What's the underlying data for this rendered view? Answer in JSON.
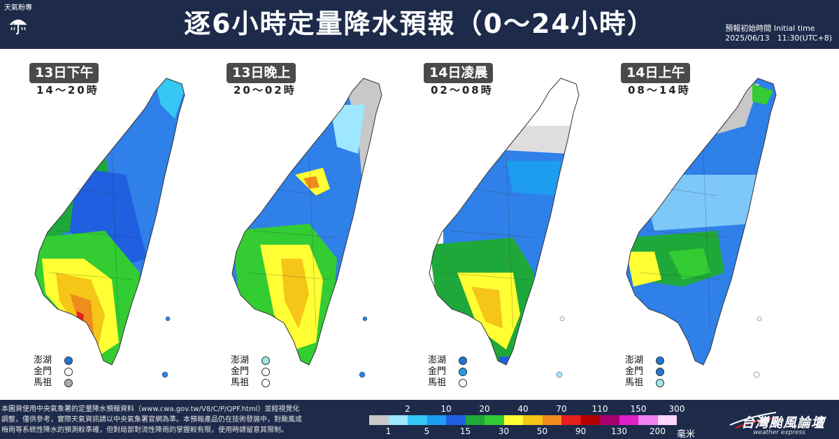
{
  "header": {
    "title": "逐6小時定量降水預報（0～24小時）",
    "logo_text": "天氣粉專",
    "init_label": "預報初始時間 Initial time",
    "init_value": "2025/06/13　11:30(UTC+8)"
  },
  "panels": [
    {
      "date": "13日下午",
      "range": "14～20時",
      "islands": [
        {
          "name": "澎湖",
          "color": "#1f77d4"
        },
        {
          "name": "金門",
          "color": "#ffffff"
        },
        {
          "name": "馬祖",
          "color": "#aaaaaa"
        }
      ]
    },
    {
      "date": "13日晚上",
      "range": "20～02時",
      "islands": [
        {
          "name": "澎湖",
          "color": "#9ee7e7"
        },
        {
          "name": "金門",
          "color": "#ffffff"
        },
        {
          "name": "馬祖",
          "color": "#ffffff"
        }
      ]
    },
    {
      "date": "14日凌晨",
      "range": "02～08時",
      "islands": [
        {
          "name": "澎湖",
          "color": "#1f77d4"
        },
        {
          "name": "金門",
          "color": "#1f9cf0"
        },
        {
          "name": "馬祖",
          "color": "#ffffff"
        }
      ]
    },
    {
      "date": "14日上午",
      "range": "08～14時",
      "islands": [
        {
          "name": "澎湖",
          "color": "#1f77d4"
        },
        {
          "name": "金門",
          "color": "#1f77d4"
        },
        {
          "name": "馬祖",
          "color": "#9ee7e7"
        }
      ]
    }
  ],
  "footer": {
    "disclaimer_1": "本圖資使用中央氣象署的定量降水預報資料（www.cwa.gov.tw/V8/C/P/QPF.html）並經視覺化",
    "disclaimer_2": "調整，僅供參考，實際天氣資訊請以中央氣象署官網為準。本預報產品仍在技術發展中，對颱風或",
    "disclaimer_3": "梅雨等系統性降水的預測較準確，但對局部對流性降雨的掌握較有限，使用時請留意其限制。",
    "legend_top": [
      "2",
      "10",
      "20",
      "40",
      "70",
      "110",
      "150",
      "300"
    ],
    "legend_bottom": [
      "1",
      "5",
      "15",
      "30",
      "50",
      "90",
      "130",
      "200"
    ],
    "legend_colors": [
      "#c8c8c8",
      "#9ee7ff",
      "#35c8f5",
      "#1e9cf0",
      "#1f5fe0",
      "#1fa83a",
      "#33cc33",
      "#ffff33",
      "#f5c518",
      "#f08c1e",
      "#e51e1e",
      "#b30000",
      "#a6006e",
      "#e020c8",
      "#f080f0",
      "#ffd5ff"
    ],
    "unit": "毫米",
    "brand_name": "台灣颱風論壇",
    "brand_sub": "weather express"
  }
}
